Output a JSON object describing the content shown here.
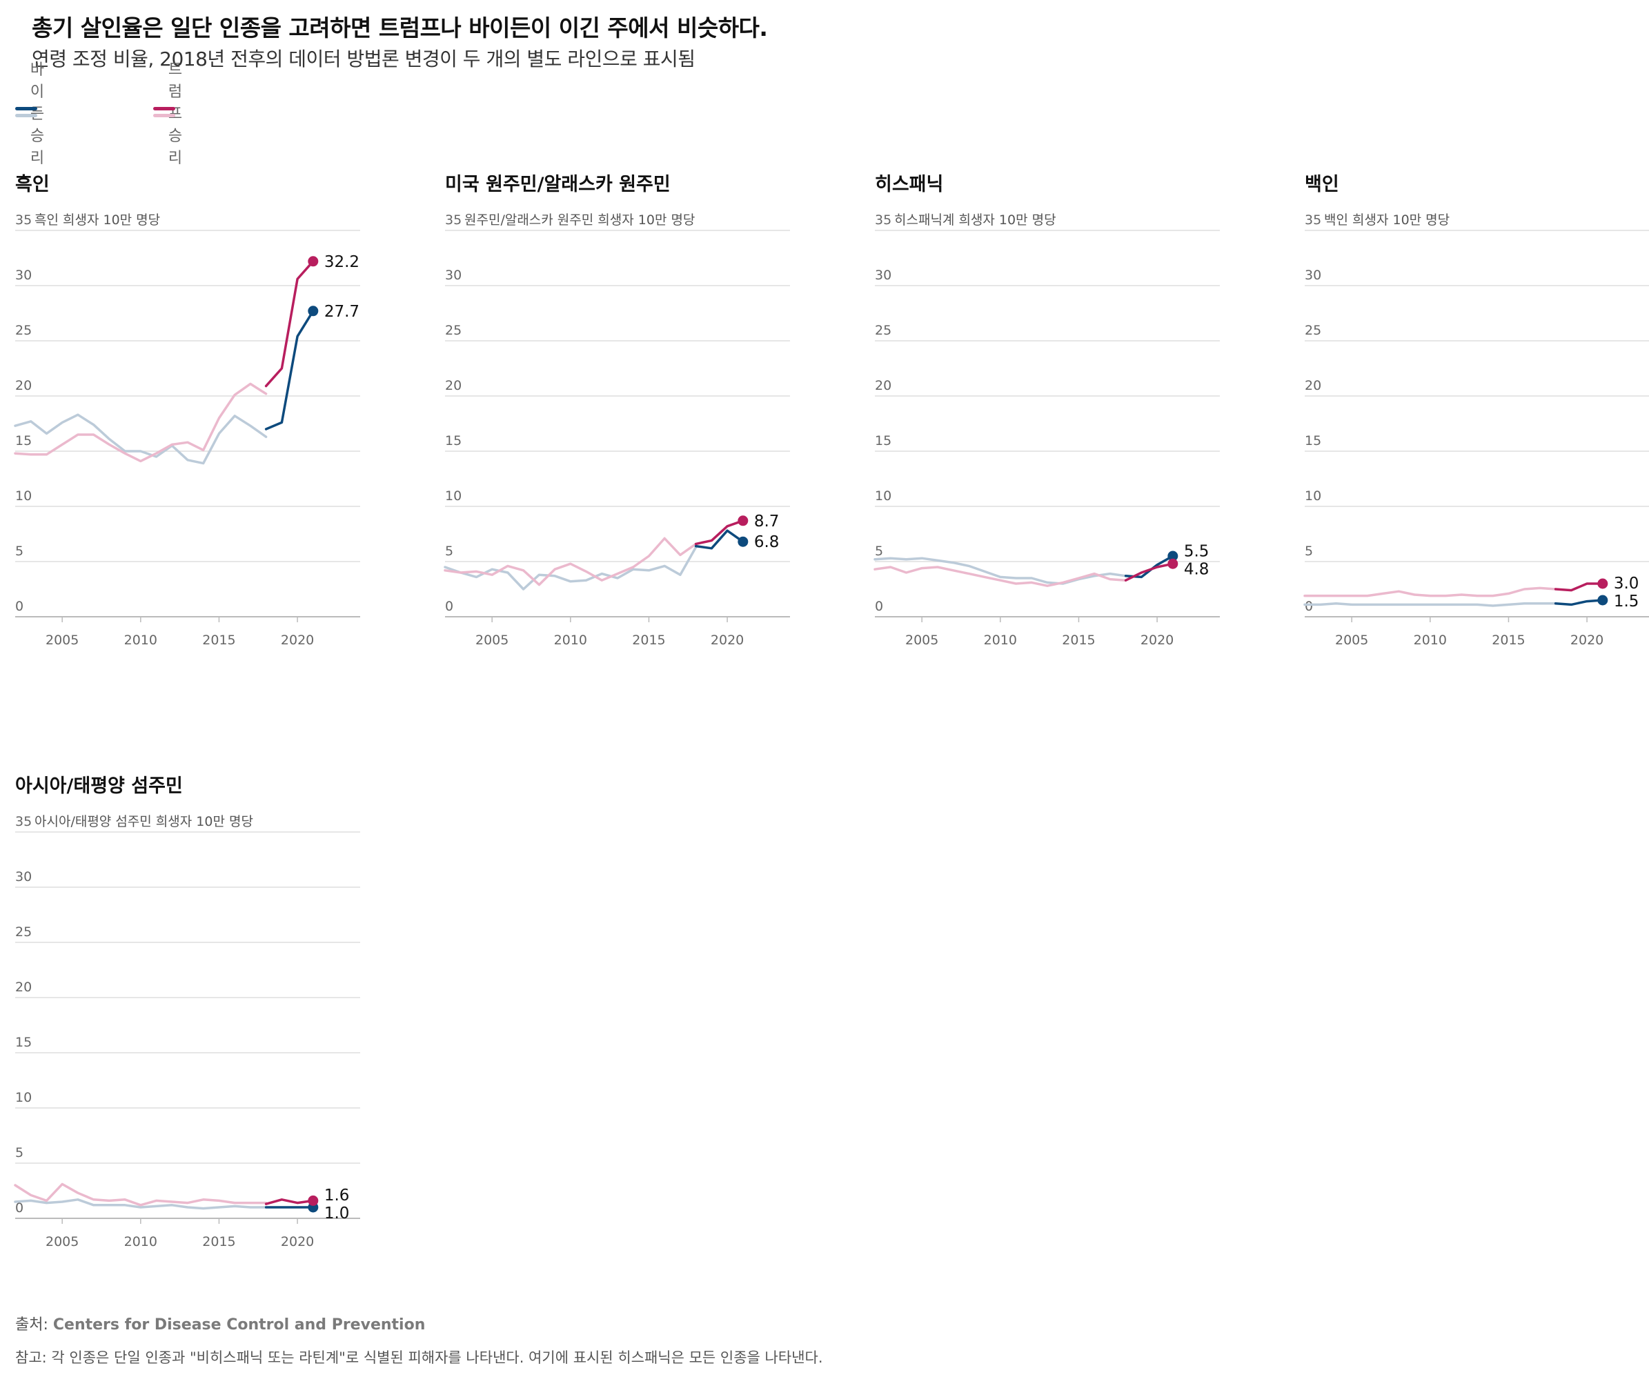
{
  "header": {
    "title": "총기 살인율은 일단 인종을 고려하면 트럼프나 바이든이 이긴 주에서 비슷하다.",
    "subtitle": "연령 조정 비율, 2018년 전후의 데이터 방법론 변경이 두 개의 별도 라인으로 표시됨"
  },
  "legend": {
    "biden": "바이든 승리",
    "trump": "트럼프 승리"
  },
  "colors": {
    "biden_dark": "#0d4a7d",
    "biden_light": "#bccbd9",
    "trump_dark": "#b81e5e",
    "trump_light": "#ebb9cd",
    "grid": "#dddddd",
    "axis": "#bbbbbb"
  },
  "chart_data": [
    {
      "type": "line",
      "title": "흑인",
      "unit_label": "흑인 희생자 10만 명당",
      "ylim": [
        0,
        35
      ],
      "yticks": [
        0,
        5,
        10,
        15,
        20,
        25,
        30,
        35
      ],
      "xlim": [
        2002,
        2024
      ],
      "xticks": [
        2005,
        2010,
        2015,
        2020
      ],
      "series": [
        {
          "name": "바이든 승리",
          "period": "old",
          "x": [
            2002,
            2003,
            2004,
            2005,
            2006,
            2007,
            2008,
            2009,
            2010,
            2011,
            2012,
            2013,
            2014,
            2015,
            2016,
            2017,
            2018
          ],
          "values": [
            17.3,
            17.7,
            16.6,
            17.6,
            18.3,
            17.4,
            16.1,
            15.0,
            15.0,
            14.5,
            15.5,
            14.2,
            13.9,
            16.6,
            18.2,
            17.3,
            16.3
          ]
        },
        {
          "name": "트럼프 승리",
          "period": "old",
          "x": [
            2002,
            2003,
            2004,
            2005,
            2006,
            2007,
            2008,
            2009,
            2010,
            2011,
            2012,
            2013,
            2014,
            2015,
            2016,
            2017,
            2018
          ],
          "values": [
            14.8,
            14.7,
            14.7,
            15.6,
            16.5,
            16.5,
            15.6,
            14.8,
            14.1,
            14.8,
            15.6,
            15.8,
            15.1,
            18.0,
            20.1,
            21.1,
            20.2
          ]
        },
        {
          "name": "바이든 승리",
          "period": "new",
          "x": [
            2018,
            2019,
            2020,
            2021
          ],
          "values": [
            17.0,
            17.6,
            25.4,
            27.7
          ]
        },
        {
          "name": "트럼프 승리",
          "period": "new",
          "x": [
            2018,
            2019,
            2020,
            2021
          ],
          "values": [
            20.9,
            22.5,
            30.6,
            32.2
          ]
        }
      ],
      "end_labels": {
        "biden": "27.7",
        "trump": "32.2"
      }
    },
    {
      "type": "line",
      "title": "미국 원주민/알래스카 원주민",
      "unit_label": "원주민/알래스카 원주민 희생자 10만 명당",
      "ylim": [
        0,
        35
      ],
      "yticks": [
        0,
        5,
        10,
        15,
        20,
        25,
        30,
        35
      ],
      "xlim": [
        2002,
        2024
      ],
      "xticks": [
        2005,
        2010,
        2015,
        2020
      ],
      "series": [
        {
          "name": "바이든 승리",
          "period": "old",
          "x": [
            2002,
            2003,
            2004,
            2005,
            2006,
            2007,
            2008,
            2009,
            2010,
            2011,
            2012,
            2013,
            2014,
            2015,
            2016,
            2017,
            2018
          ],
          "values": [
            4.5,
            4.0,
            3.6,
            4.3,
            4.0,
            2.5,
            3.8,
            3.7,
            3.2,
            3.3,
            3.9,
            3.5,
            4.3,
            4.2,
            4.6,
            3.8,
            6.3
          ]
        },
        {
          "name": "트럼프 승리",
          "period": "old",
          "x": [
            2002,
            2003,
            2004,
            2005,
            2006,
            2007,
            2008,
            2009,
            2010,
            2011,
            2012,
            2013,
            2014,
            2015,
            2016,
            2017,
            2018
          ],
          "values": [
            4.2,
            4.0,
            4.1,
            3.8,
            4.6,
            4.2,
            2.9,
            4.3,
            4.8,
            4.1,
            3.3,
            3.9,
            4.5,
            5.5,
            7.1,
            5.6,
            6.6
          ]
        },
        {
          "name": "바이든 승리",
          "period": "new",
          "x": [
            2018,
            2019,
            2020,
            2021
          ],
          "values": [
            6.4,
            6.2,
            7.8,
            6.8
          ]
        },
        {
          "name": "트럼프 승리",
          "period": "new",
          "x": [
            2018,
            2019,
            2020,
            2021
          ],
          "values": [
            6.6,
            6.9,
            8.2,
            8.7
          ]
        }
      ],
      "end_labels": {
        "biden": "6.8",
        "trump": "8.7"
      }
    },
    {
      "type": "line",
      "title": "히스패닉",
      "unit_label": "히스패닉계 희생자 10만 명당",
      "ylim": [
        0,
        35
      ],
      "yticks": [
        0,
        5,
        10,
        15,
        20,
        25,
        30,
        35
      ],
      "xlim": [
        2002,
        2024
      ],
      "xticks": [
        2005,
        2010,
        2015,
        2020
      ],
      "series": [
        {
          "name": "바이든 승리",
          "period": "old",
          "x": [
            2002,
            2003,
            2004,
            2005,
            2006,
            2007,
            2008,
            2009,
            2010,
            2011,
            2012,
            2013,
            2014,
            2015,
            2016,
            2017,
            2018
          ],
          "values": [
            5.2,
            5.3,
            5.2,
            5.3,
            5.1,
            4.9,
            4.6,
            4.1,
            3.6,
            3.5,
            3.5,
            3.1,
            3.0,
            3.4,
            3.7,
            3.9,
            3.7
          ]
        },
        {
          "name": "트럼프 승리",
          "period": "old",
          "x": [
            2002,
            2003,
            2004,
            2005,
            2006,
            2007,
            2008,
            2009,
            2010,
            2011,
            2012,
            2013,
            2014,
            2015,
            2016,
            2017,
            2018
          ],
          "values": [
            4.3,
            4.5,
            4.0,
            4.4,
            4.5,
            4.2,
            3.9,
            3.6,
            3.3,
            3.0,
            3.1,
            2.8,
            3.1,
            3.5,
            3.9,
            3.4,
            3.3
          ]
        },
        {
          "name": "바이든 승리",
          "period": "new",
          "x": [
            2018,
            2019,
            2020,
            2021
          ],
          "values": [
            3.7,
            3.6,
            4.7,
            5.5
          ]
        },
        {
          "name": "트럼프 승리",
          "period": "new",
          "x": [
            2018,
            2019,
            2020,
            2021
          ],
          "values": [
            3.3,
            4.0,
            4.5,
            4.8
          ]
        }
      ],
      "end_labels": {
        "biden": "5.5",
        "trump": "4.8"
      }
    },
    {
      "type": "line",
      "title": "백인",
      "unit_label": "백인 희생자 10만 명당",
      "ylim": [
        0,
        35
      ],
      "yticks": [
        0,
        5,
        10,
        15,
        20,
        25,
        30,
        35
      ],
      "xlim": [
        2002,
        2024
      ],
      "xticks": [
        2005,
        2010,
        2015,
        2020
      ],
      "series": [
        {
          "name": "바이든 승리",
          "period": "old",
          "x": [
            2002,
            2003,
            2004,
            2005,
            2006,
            2007,
            2008,
            2009,
            2010,
            2011,
            2012,
            2013,
            2014,
            2015,
            2016,
            2017,
            2018
          ],
          "values": [
            1.1,
            1.1,
            1.2,
            1.1,
            1.1,
            1.1,
            1.1,
            1.1,
            1.1,
            1.1,
            1.1,
            1.1,
            1.0,
            1.1,
            1.2,
            1.2,
            1.2
          ]
        },
        {
          "name": "트럼프 승리",
          "period": "old",
          "x": [
            2002,
            2003,
            2004,
            2005,
            2006,
            2007,
            2008,
            2009,
            2010,
            2011,
            2012,
            2013,
            2014,
            2015,
            2016,
            2017,
            2018
          ],
          "values": [
            1.9,
            1.9,
            1.9,
            1.9,
            1.9,
            2.1,
            2.3,
            2.0,
            1.9,
            1.9,
            2.0,
            1.9,
            1.9,
            2.1,
            2.5,
            2.6,
            2.5
          ]
        },
        {
          "name": "바이든 승리",
          "period": "new",
          "x": [
            2018,
            2019,
            2020,
            2021
          ],
          "values": [
            1.2,
            1.1,
            1.4,
            1.5
          ]
        },
        {
          "name": "트럼프 승리",
          "period": "new",
          "x": [
            2018,
            2019,
            2020,
            2021
          ],
          "values": [
            2.5,
            2.4,
            3.0,
            3.0
          ]
        }
      ],
      "end_labels": {
        "biden": "1.5",
        "trump": "3.0"
      }
    },
    {
      "type": "line",
      "title": "아시아/태평양 섬주민",
      "unit_label": "아시아/태평양 섬주민 희생자 10만 명당",
      "ylim": [
        0,
        35
      ],
      "yticks": [
        0,
        5,
        10,
        15,
        20,
        25,
        30,
        35
      ],
      "xlim": [
        2002,
        2024
      ],
      "xticks": [
        2005,
        2010,
        2015,
        2020
      ],
      "series": [
        {
          "name": "바이든 승리",
          "period": "old",
          "x": [
            2002,
            2003,
            2004,
            2005,
            2006,
            2007,
            2008,
            2009,
            2010,
            2011,
            2012,
            2013,
            2014,
            2015,
            2016,
            2017,
            2018
          ],
          "values": [
            1.5,
            1.6,
            1.4,
            1.5,
            1.7,
            1.2,
            1.2,
            1.2,
            1.0,
            1.1,
            1.2,
            1.0,
            0.9,
            1.0,
            1.1,
            1.0,
            1.0
          ]
        },
        {
          "name": "트럼프 승리",
          "period": "old",
          "x": [
            2002,
            2003,
            2004,
            2005,
            2006,
            2007,
            2008,
            2009,
            2010,
            2011,
            2012,
            2013,
            2014,
            2015,
            2016,
            2017,
            2018
          ],
          "values": [
            3.0,
            2.1,
            1.6,
            3.1,
            2.3,
            1.7,
            1.6,
            1.7,
            1.2,
            1.6,
            1.5,
            1.4,
            1.7,
            1.6,
            1.4,
            1.4,
            1.4
          ]
        },
        {
          "name": "바이든 승리",
          "period": "new",
          "x": [
            2018,
            2019,
            2020,
            2021
          ],
          "values": [
            1.0,
            1.0,
            1.0,
            1.0
          ]
        },
        {
          "name": "트럼프 승리",
          "period": "new",
          "x": [
            2018,
            2019,
            2020,
            2021
          ],
          "values": [
            1.3,
            1.7,
            1.4,
            1.6
          ]
        }
      ],
      "end_labels": {
        "biden": "1.0",
        "trump": "1.6"
      }
    }
  ],
  "footer": {
    "source_prefix": "출처: ",
    "source_name": "Centers for Disease Control and Prevention",
    "note": "참고: 각 인종은 단일 인종과 \"비히스패닉 또는 라틴계\"로 식별된 피해자를 나타낸다. 여기에 표시된 히스패닉은 모든 인종을 나타낸다."
  }
}
